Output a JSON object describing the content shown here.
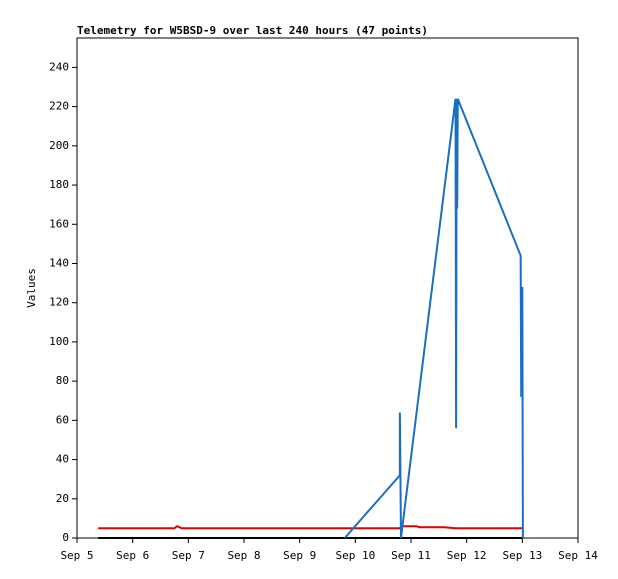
{
  "chart_data": {
    "type": "line",
    "title": "Telemetry for W5BSD-9 over last 240 hours (47 points)",
    "y_label": "Values",
    "xlim": [
      5,
      14
    ],
    "xticks": [
      {
        "value": 5,
        "label": "Sep 5"
      },
      {
        "value": 6,
        "label": "Sep 6"
      },
      {
        "value": 7,
        "label": "Sep 7"
      },
      {
        "value": 8,
        "label": "Sep 8"
      },
      {
        "value": 9,
        "label": "Sep 9"
      },
      {
        "value": 10,
        "label": "Sep 10"
      },
      {
        "value": 11,
        "label": "Sep 11"
      },
      {
        "value": 12,
        "label": "Sep 12"
      },
      {
        "value": 13,
        "label": "Sep 13"
      },
      {
        "value": 14,
        "label": "Sep 14"
      }
    ],
    "ylim": [
      0,
      255
    ],
    "yticks": [
      0,
      20,
      40,
      60,
      80,
      100,
      120,
      140,
      160,
      180,
      200,
      220,
      240
    ],
    "series": [
      {
        "color": "#000000",
        "x": [
          5.38,
          13.0
        ],
        "values": [
          0,
          0
        ]
      },
      {
        "color": "#e00000",
        "x": [
          5.38,
          6.75,
          6.8,
          6.88,
          10.8,
          10.85,
          11.1,
          11.15,
          11.6,
          11.8,
          13.0
        ],
        "values": [
          5,
          5,
          6,
          5,
          5,
          6,
          6,
          5.5,
          5.5,
          5,
          5
        ]
      },
      {
        "color": "#1a6fc4",
        "x": [
          9.81,
          10.8,
          10.8,
          10.82,
          11.8,
          11.81,
          11.82,
          11.83,
          11.84,
          12.97,
          12.98,
          13.0,
          13.01
        ],
        "values": [
          0,
          32,
          64,
          0,
          224,
          56,
          224,
          168,
          224,
          144,
          72,
          128,
          0
        ]
      }
    ]
  }
}
